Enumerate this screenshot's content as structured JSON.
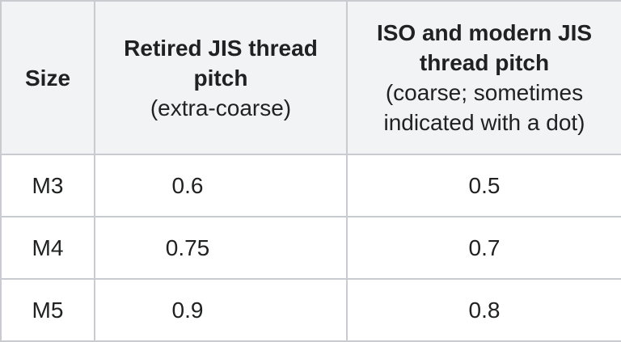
{
  "table": {
    "header": [
      {
        "title": "Size"
      },
      {
        "title": "Retired JIS thread pitch",
        "note": "(extra-coarse)"
      },
      {
        "title": "ISO and modern JIS thread pitch",
        "note": "(coarse; sometimes indicated with a dot)"
      }
    ],
    "rows": [
      [
        "M3",
        "0.6",
        "0.5"
      ],
      [
        "M4",
        "0.75",
        "0.7"
      ],
      [
        "M5",
        "0.9",
        "0.8"
      ]
    ]
  }
}
